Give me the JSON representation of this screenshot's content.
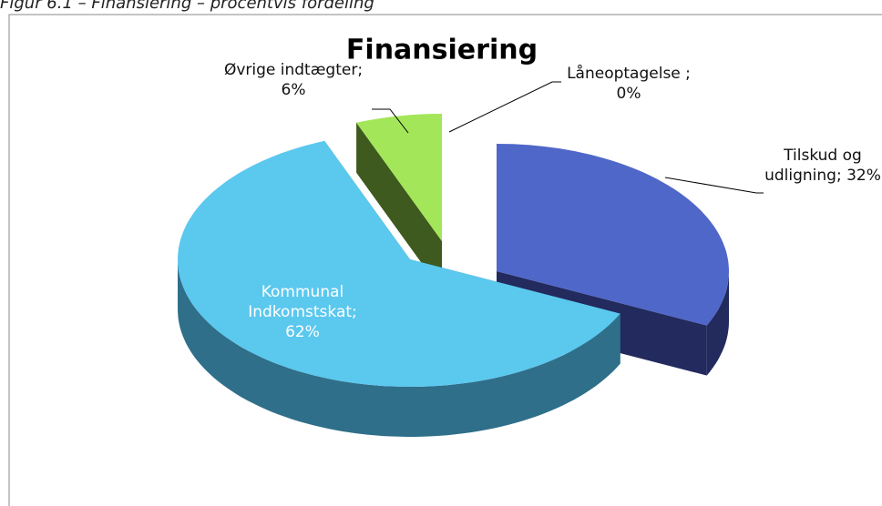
{
  "caption": "Figur 6.1 – Finansiering – procentvis fordeling",
  "chart_data": {
    "type": "pie3d",
    "title": "Finansiering",
    "values": [
      32,
      62,
      6,
      0
    ],
    "value_labels": [
      "Tilskud og udligning; 32%",
      "Kommunal Indkomstskat; 62%",
      "Øvrige indtægter; 6%",
      "Låneoptagelse ; 0%"
    ],
    "colors": [
      "#4f67c8",
      "#5bc8ee",
      "#a4e65a",
      "#e46c0a"
    ],
    "side_colors": [
      "#222a5e",
      "#2f6f8a",
      "#3e5a1e",
      "#7a3a05"
    ]
  }
}
